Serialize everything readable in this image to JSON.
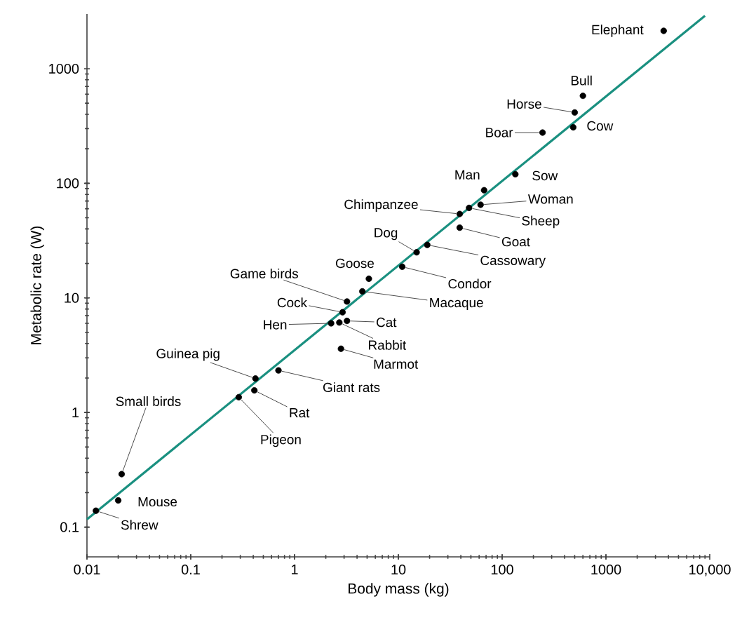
{
  "chart_data": {
    "type": "scatter",
    "xlabel": "Body mass (kg)",
    "ylabel": "Metabolic rate (W)",
    "log": "xy",
    "xlim": [
      0.01,
      10000
    ],
    "ylim": [
      0.055,
      3000
    ],
    "xticks": [
      0.01,
      0.1,
      1,
      10,
      100,
      1000,
      {
        "value": 10000,
        "label": "10,000"
      }
    ],
    "yticks": [
      0.1,
      1,
      10,
      100,
      1000
    ],
    "series": [
      {
        "marker": "circle",
        "color": "#000000",
        "x": [
          3600,
          600,
          500,
          484,
          245,
          134,
          67,
          62,
          48,
          39,
          39,
          19,
          15,
          10.9,
          5.2,
          4.5,
          3.2,
          2.9,
          3.2,
          2.25,
          2.7,
          2.8,
          0.7,
          0.42,
          0.41,
          0.29,
          0.0216,
          0.02,
          0.0122
        ],
        "values": [
          2140,
          580,
          415,
          308,
          277,
          120,
          87,
          65,
          61,
          54,
          41,
          29,
          25,
          18.7,
          14.7,
          11.4,
          9.3,
          7.5,
          6.3,
          6.0,
          6.1,
          3.6,
          2.33,
          1.98,
          1.56,
          1.36,
          0.29,
          0.171,
          0.139
        ]
      },
      {
        "type": "line",
        "marker": "none",
        "color": "#1a9080",
        "x": [
          0.01,
          9000
        ],
        "values": [
          0.117,
          2900
        ]
      }
    ],
    "annotations": [
      {
        "text": "Elephant",
        "x": 3600,
        "y": 2140
      },
      {
        "text": "Bull",
        "x": 600,
        "y": 580
      },
      {
        "text": "Horse",
        "x": 500,
        "y": 415
      },
      {
        "text": "Cow",
        "x": 484,
        "y": 308
      },
      {
        "text": "Boar",
        "x": 245,
        "y": 277
      },
      {
        "text": "Sow",
        "x": 134,
        "y": 120
      },
      {
        "text": "Man",
        "x": 67,
        "y": 87
      },
      {
        "text": "Woman",
        "x": 62,
        "y": 65
      },
      {
        "text": "Sheep",
        "x": 48,
        "y": 61
      },
      {
        "text": "Chimpanzee",
        "x": 39,
        "y": 54
      },
      {
        "text": "Goat",
        "x": 39,
        "y": 41
      },
      {
        "text": "Cassowary",
        "x": 19,
        "y": 29
      },
      {
        "text": "Dog",
        "x": 15,
        "y": 25
      },
      {
        "text": "Condor",
        "x": 10.9,
        "y": 18.7
      },
      {
        "text": "Goose",
        "x": 5.2,
        "y": 14.7
      },
      {
        "text": "Macaque",
        "x": 4.5,
        "y": 11.4
      },
      {
        "text": "Game birds",
        "x": 3.2,
        "y": 9.3
      },
      {
        "text": "Cock",
        "x": 2.9,
        "y": 7.5
      },
      {
        "text": "Cat",
        "x": 3.2,
        "y": 6.3
      },
      {
        "text": "Hen",
        "x": 2.25,
        "y": 6.0
      },
      {
        "text": "Rabbit",
        "x": 2.7,
        "y": 6.1
      },
      {
        "text": "Marmot",
        "x": 2.8,
        "y": 3.6
      },
      {
        "text": "Giant rats",
        "x": 0.7,
        "y": 2.33
      },
      {
        "text": "Guinea pig",
        "x": 0.42,
        "y": 1.98
      },
      {
        "text": "Rat",
        "x": 0.41,
        "y": 1.56
      },
      {
        "text": "Pigeon",
        "x": 0.29,
        "y": 1.36
      },
      {
        "text": "Small birds",
        "x": 0.0216,
        "y": 0.29
      },
      {
        "text": "Mouse",
        "x": 0.02,
        "y": 0.171
      },
      {
        "text": "Shrew",
        "x": 0.0122,
        "y": 0.139
      }
    ]
  }
}
